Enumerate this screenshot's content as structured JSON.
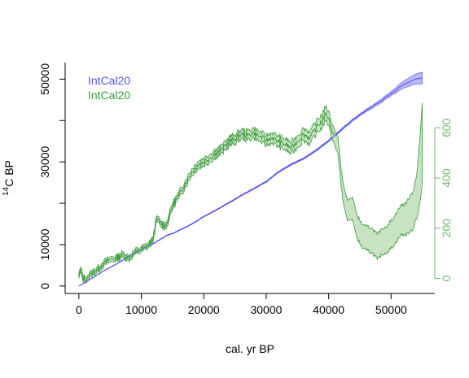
{
  "chart_data": {
    "type": "line",
    "xlabel": "cal. yr BP",
    "ylabel_main": "C BP",
    "ylabel_sup": "14",
    "xlim": [
      -2200,
      57000
    ],
    "ylim_left": [
      -1800,
      54000
    ],
    "ylim_right": [
      -60,
      860
    ],
    "x_ticks": [
      0,
      10000,
      20000,
      30000,
      40000,
      50000
    ],
    "y_left_ticks": [
      0,
      10000,
      30000,
      50000
    ],
    "y_left_minor_ticks": [
      20000,
      40000
    ],
    "y_right_ticks": [
      0,
      200,
      400,
      600
    ],
    "legend": [
      "IntCal20",
      "IntCal20"
    ],
    "legend_position": "top-left",
    "colors": {
      "c14": "#5555ee",
      "c14_band": "#b8b8f4",
      "delta": "#3a9a3a",
      "delta_band": "#c7e3c2",
      "axis": "#000000",
      "right_axis": "#6fb86f"
    },
    "series": [
      {
        "name": "IntCal20",
        "axis": "left",
        "points": [
          [
            0,
            0
          ],
          [
            2000,
            1800
          ],
          [
            4000,
            3700
          ],
          [
            6000,
            5300
          ],
          [
            8000,
            7200
          ],
          [
            10000,
            8900
          ],
          [
            12000,
            10300
          ],
          [
            13000,
            11200
          ],
          [
            14000,
            12200
          ],
          [
            15000,
            12700
          ],
          [
            16000,
            13400
          ],
          [
            18000,
            14900
          ],
          [
            20000,
            16800
          ],
          [
            22000,
            18400
          ],
          [
            24000,
            20100
          ],
          [
            26000,
            21900
          ],
          [
            28000,
            23500
          ],
          [
            30000,
            25200
          ],
          [
            32000,
            27600
          ],
          [
            34000,
            29400
          ],
          [
            36000,
            30800
          ],
          [
            38000,
            32800
          ],
          [
            40000,
            35100
          ],
          [
            42000,
            37700
          ],
          [
            44000,
            40300
          ],
          [
            46000,
            42400
          ],
          [
            48000,
            44300
          ],
          [
            50000,
            46500
          ],
          [
            52000,
            48700
          ],
          [
            54000,
            50100
          ],
          [
            55000,
            50300
          ]
        ],
        "band_halfwidth": [
          [
            0,
            50
          ],
          [
            30000,
            150
          ],
          [
            45000,
            250
          ],
          [
            50000,
            500
          ],
          [
            55000,
            1400
          ]
        ]
      },
      {
        "name": "IntCal20",
        "axis": "right",
        "points": [
          [
            0,
            10
          ],
          [
            300,
            35
          ],
          [
            600,
            5
          ],
          [
            1000,
            -5
          ],
          [
            1500,
            5
          ],
          [
            2000,
            20
          ],
          [
            3000,
            35
          ],
          [
            4000,
            60
          ],
          [
            5000,
            75
          ],
          [
            6000,
            80
          ],
          [
            7000,
            95
          ],
          [
            8000,
            80
          ],
          [
            9000,
            105
          ],
          [
            10000,
            115
          ],
          [
            11000,
            130
          ],
          [
            11800,
            150
          ],
          [
            12500,
            240
          ],
          [
            13200,
            215
          ],
          [
            14000,
            210
          ],
          [
            14500,
            250
          ],
          [
            15000,
            290
          ],
          [
            16000,
            330
          ],
          [
            17000,
            375
          ],
          [
            18000,
            420
          ],
          [
            19000,
            450
          ],
          [
            20000,
            465
          ],
          [
            21000,
            480
          ],
          [
            22000,
            500
          ],
          [
            23000,
            515
          ],
          [
            24000,
            545
          ],
          [
            25000,
            555
          ],
          [
            26000,
            575
          ],
          [
            27000,
            570
          ],
          [
            28000,
            580
          ],
          [
            29000,
            565
          ],
          [
            30000,
            550
          ],
          [
            31000,
            560
          ],
          [
            32000,
            545
          ],
          [
            33000,
            535
          ],
          [
            34000,
            520
          ],
          [
            35000,
            545
          ],
          [
            36000,
            575
          ],
          [
            37000,
            560
          ],
          [
            38000,
            600
          ],
          [
            39000,
            630
          ],
          [
            39500,
            655
          ],
          [
            40000,
            640
          ],
          [
            40500,
            590
          ],
          [
            41000,
            560
          ],
          [
            41500,
            530
          ],
          [
            42000,
            400
          ],
          [
            42500,
            320
          ],
          [
            43000,
            270
          ],
          [
            43800,
            280
          ],
          [
            44500,
            210
          ],
          [
            45300,
            170
          ],
          [
            46000,
            160
          ],
          [
            47000,
            150
          ],
          [
            47800,
            125
          ],
          [
            48500,
            145
          ],
          [
            49500,
            160
          ],
          [
            50500,
            190
          ],
          [
            51500,
            230
          ],
          [
            52500,
            240
          ],
          [
            53500,
            270
          ],
          [
            54200,
            340
          ],
          [
            54700,
            450
          ],
          [
            55000,
            540
          ]
        ],
        "band_halfwidth": [
          [
            0,
            10
          ],
          [
            12000,
            10
          ],
          [
            20000,
            15
          ],
          [
            30000,
            20
          ],
          [
            38000,
            25
          ],
          [
            41000,
            30
          ],
          [
            44000,
            45
          ],
          [
            48000,
            50
          ],
          [
            52000,
            60
          ],
          [
            54000,
            80
          ],
          [
            55000,
            160
          ]
        ]
      }
    ]
  }
}
